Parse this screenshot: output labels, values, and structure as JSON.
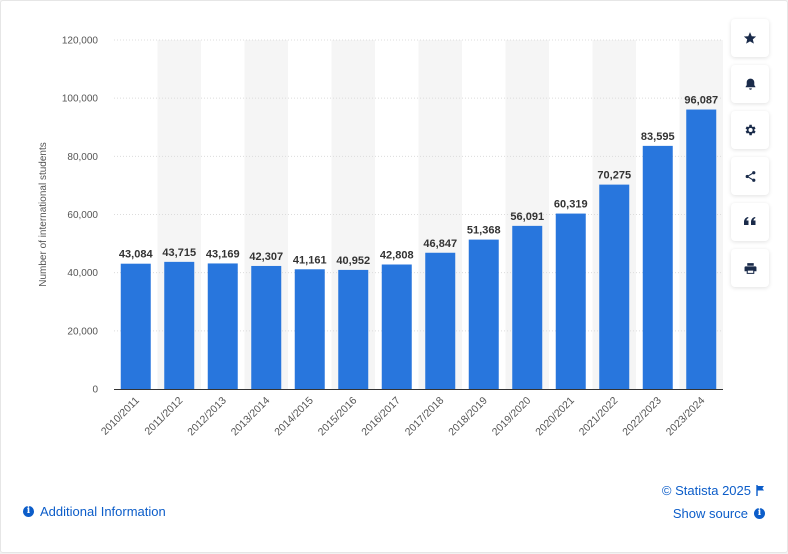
{
  "chart_data": {
    "type": "bar",
    "ylabel": "Number of international students",
    "categories": [
      "2010/2011",
      "2011/2012",
      "2012/2013",
      "2013/2014",
      "2014/2015",
      "2015/2016",
      "2016/2017",
      "2017/2018",
      "2018/2019",
      "2019/2020",
      "2020/2021",
      "2021/2022",
      "2022/2023",
      "2023/2024"
    ],
    "values": [
      43084,
      43715,
      43169,
      42307,
      41161,
      40952,
      42808,
      46847,
      51368,
      56091,
      60319,
      70275,
      83595,
      96087
    ],
    "value_labels": [
      "43,084",
      "43,715",
      "43,169",
      "42,307",
      "41,161",
      "40,952",
      "42,808",
      "46,847",
      "51,368",
      "56,091",
      "60,319",
      "70,275",
      "83,595",
      "96,087"
    ],
    "ylim": [
      0,
      120000
    ],
    "yticks": [
      0,
      20000,
      40000,
      60000,
      80000,
      100000,
      120000
    ],
    "ytick_labels": [
      "0",
      "20,000",
      "40,000",
      "60,000",
      "80,000",
      "100,000",
      "120,000"
    ],
    "grid": true,
    "bar_color": "#2876dd",
    "legend": "none"
  },
  "toolbar": {
    "buttons": [
      {
        "name": "favorite-button",
        "icon": "star-icon"
      },
      {
        "name": "notification-button",
        "icon": "bell-icon"
      },
      {
        "name": "settings-button",
        "icon": "gear-icon"
      },
      {
        "name": "share-button",
        "icon": "share-icon"
      },
      {
        "name": "cite-button",
        "icon": "quote-icon"
      },
      {
        "name": "print-button",
        "icon": "printer-icon"
      }
    ]
  },
  "footer": {
    "additional_info": "Additional Information",
    "copyright": "© Statista 2025",
    "show_source": "Show source",
    "accent_color": "#0c5dc9"
  }
}
